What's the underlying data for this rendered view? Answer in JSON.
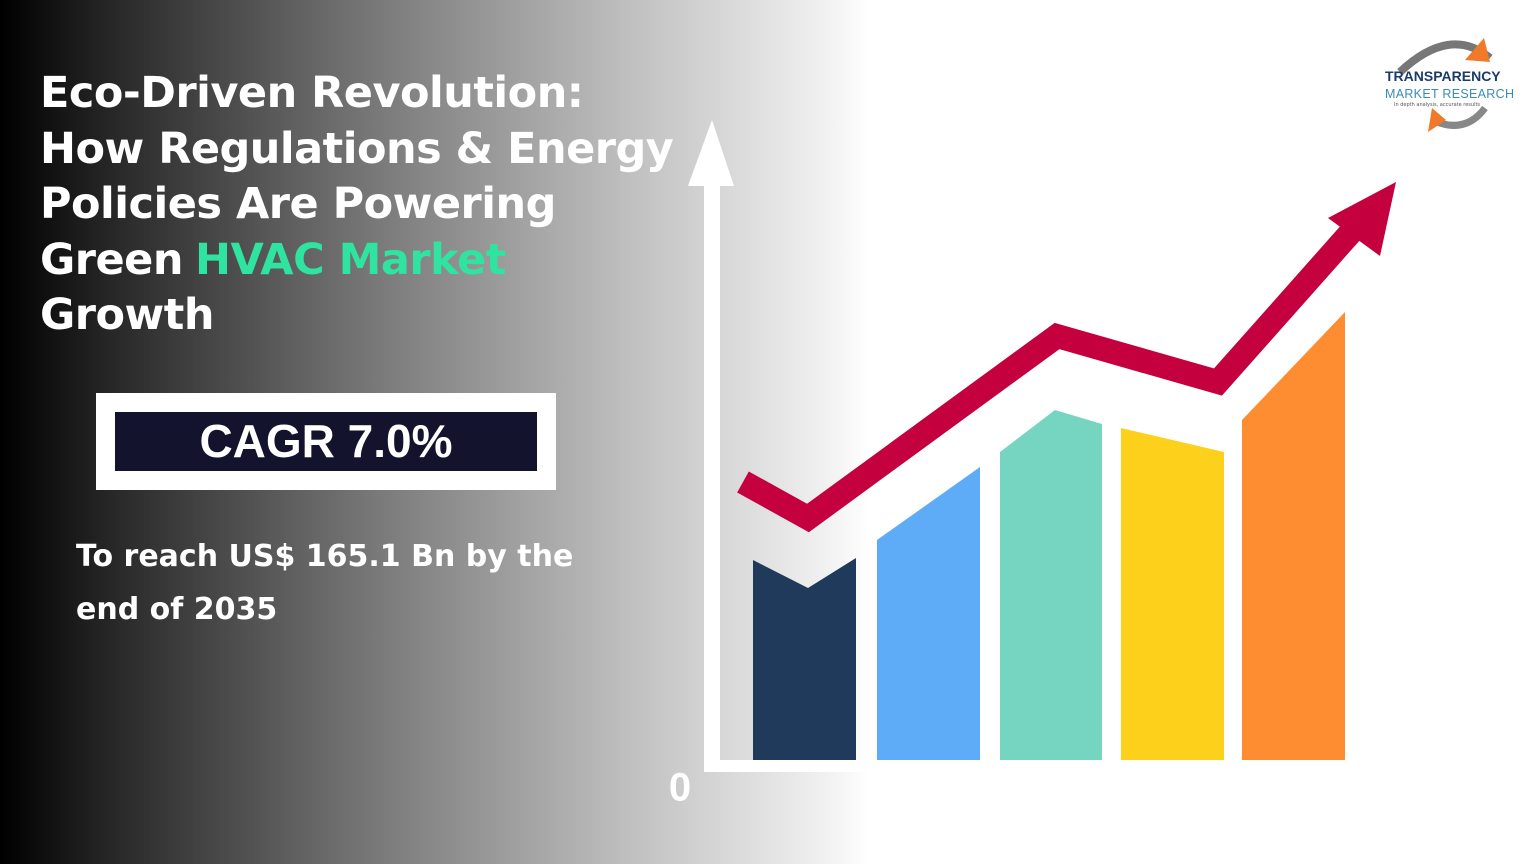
{
  "title": {
    "lines": [
      "Eco-Driven Revolution:",
      "How Regulations & Energy",
      "Policies Are Powering",
      {
        "text": "Green",
        "highlight": "HVAC Market"
      },
      "Growth"
    ]
  },
  "cagr": "CAGR 7.0%",
  "subtitle": "To reach US$ 165.1 Bn by the end of 2035",
  "chart_axis_label": "0",
  "logo": {
    "name": "TRANSPARENCY",
    "subname": "MARKET RESEARCH",
    "tagline": "In depth analysis, accurate results"
  }
}
